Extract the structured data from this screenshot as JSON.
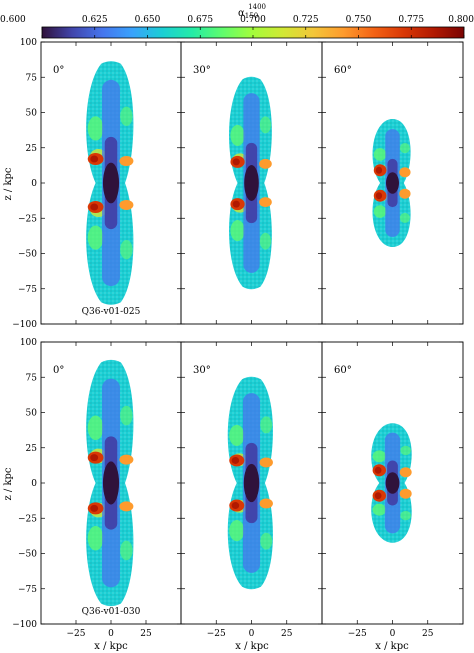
{
  "chart_data": {
    "type": "heatmap",
    "colorbar": {
      "label": "α",
      "label_sub": "150",
      "label_sup": "1400",
      "range": [
        0.6,
        0.8
      ],
      "ticks": [
        "0.600",
        "0.625",
        "0.650",
        "0.675",
        "0.700",
        "0.725",
        "0.750",
        "0.775",
        "0.800"
      ],
      "colormap": [
        "#30123b",
        "#4145ab",
        "#4675ed",
        "#39a2fc",
        "#1bcfd4",
        "#24eca6",
        "#61fc6c",
        "#a4fc3b",
        "#d1e834",
        "#f3c63a",
        "#fe9b2d",
        "#f36315",
        "#d93806",
        "#b11901",
        "#7a0403"
      ]
    },
    "xlabel": "x / kpc",
    "ylabel": "z / kpc",
    "xlim": [
      -50,
      50
    ],
    "ylim": [
      -100,
      100
    ],
    "xticks": [
      "−25",
      "0",
      "25"
    ],
    "yticks": [
      "100",
      "75",
      "50",
      "25",
      "0",
      "−25",
      "−50",
      "−75",
      "−100"
    ],
    "columns": [
      "0°",
      "30°",
      "60°"
    ],
    "rows": [
      {
        "label": "Q36-v01-025",
        "panels": [
          {
            "angle": "0°",
            "z_extent": 86,
            "half_width": 20,
            "hotspot_z": 17,
            "mean_alpha": 0.655
          },
          {
            "angle": "30°",
            "z_extent": 75,
            "half_width": 18,
            "hotspot_z": 15,
            "mean_alpha": 0.655
          },
          {
            "angle": "60°",
            "z_extent": 45,
            "half_width": 16,
            "hotspot_z": 9,
            "mean_alpha": 0.65
          }
        ]
      },
      {
        "label": "Q36-v01-030",
        "panels": [
          {
            "angle": "0°",
            "z_extent": 87,
            "half_width": 20,
            "hotspot_z": 18,
            "mean_alpha": 0.655
          },
          {
            "angle": "30°",
            "z_extent": 75,
            "half_width": 19,
            "hotspot_z": 16,
            "mean_alpha": 0.655
          },
          {
            "angle": "60°",
            "z_extent": 42,
            "half_width": 17,
            "hotspot_z": 9,
            "mean_alpha": 0.65
          }
        ]
      }
    ]
  }
}
